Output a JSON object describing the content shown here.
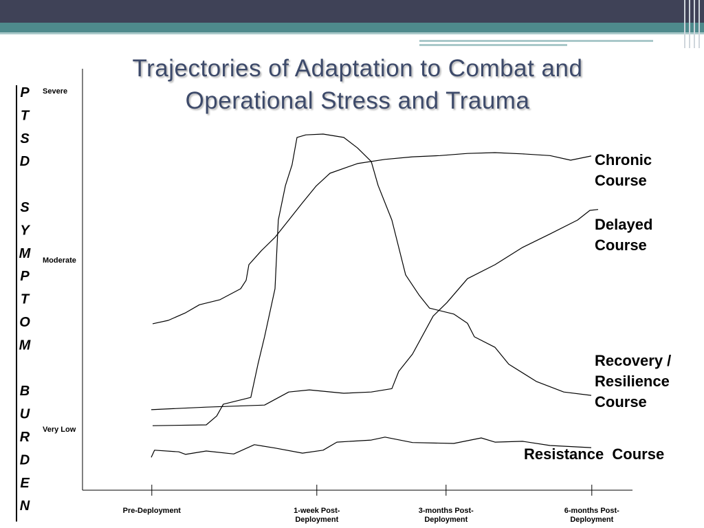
{
  "chart_data": {
    "type": "line",
    "title": "Trajectories of Adaptation to Combat and Operational Stress and Trauma",
    "y_label": "PTSD SYMPTOM BURDEN",
    "xlim": [
      0,
      100
    ],
    "ylim": [
      0,
      100
    ],
    "xticks": [
      {
        "value": 12.6,
        "label": "Pre-Deployment"
      },
      {
        "value": 42.6,
        "label": "1-week Post-Deployment"
      },
      {
        "value": 66.1,
        "label": "3-months Post-Deployment"
      },
      {
        "value": 92.6,
        "label": "6-months Post-Deployment"
      }
    ],
    "yticks": [
      {
        "value": 14.4,
        "label": "Very Low"
      },
      {
        "value": 54.5,
        "label": "Moderate"
      },
      {
        "value": 94.6,
        "label": "Severe"
      }
    ],
    "series": [
      {
        "name": "Chronic Course",
        "color": "#000000",
        "x": [
          12.75,
          15.6,
          18.75,
          21.25,
          25,
          28.75,
          29.75,
          30.25,
          32.5,
          35,
          37.5,
          40,
          42.5,
          45,
          50,
          55,
          60,
          65,
          70,
          75,
          80,
          85,
          88.75,
          92.5
        ],
        "values": [
          39.5,
          40.3,
          42.1,
          44.0,
          45.2,
          47.8,
          49.8,
          53.5,
          56.8,
          60.0,
          64.1,
          68.2,
          72.2,
          75.2,
          77.5,
          78.5,
          79.1,
          79.4,
          79.9,
          80.1,
          79.8,
          79.4,
          78.3,
          79.3
        ]
      },
      {
        "name": "Delayed Course",
        "color": "#000000",
        "x": [
          12.5,
          22.5,
          33.1,
          37.5,
          41.25,
          47.5,
          52.5,
          56.25,
          57.5,
          60,
          63.75,
          66.25,
          70,
          75,
          80,
          85,
          90,
          92.25,
          93.75
        ],
        "values": [
          19.1,
          19.7,
          20.2,
          23.3,
          23.8,
          23.0,
          23.3,
          24.1,
          28.2,
          32.3,
          41.3,
          44.5,
          50.2,
          53.5,
          57.6,
          60.8,
          64.1,
          66.4,
          66.6
        ]
      },
      {
        "name": "Recovery / Resilience Course",
        "color": "#000000",
        "x": [
          12.75,
          22.5,
          24.4,
          25.6,
          30.6,
          31.9,
          33.1,
          35,
          35.6,
          36.9,
          38.1,
          39,
          40.6,
          43.75,
          47.5,
          50,
          52.5,
          53.75,
          56.25,
          58.75,
          61.25,
          63.1,
          67.5,
          70,
          71.25,
          75,
          77.5,
          82.5,
          87.5,
          92.5
        ],
        "values": [
          15.3,
          15.5,
          17.6,
          20.4,
          22.0,
          29.9,
          36.4,
          47.8,
          64.1,
          72.3,
          77.2,
          83.7,
          84.3,
          84.5,
          83.7,
          81.2,
          78.0,
          72.3,
          64.1,
          51.1,
          46.2,
          43.2,
          41.8,
          39.6,
          36.4,
          33.9,
          29.9,
          25.8,
          23.3,
          22.5
        ]
      },
      {
        "name": "Resistance  Course",
        "color": "#000000",
        "x": [
          12.5,
          13.1,
          17.5,
          18.75,
          22.5,
          27.5,
          31.25,
          35,
          40,
          43.75,
          46.25,
          52.5,
          55,
          60,
          67.5,
          72.5,
          75,
          80,
          85,
          92.5
        ],
        "values": [
          7.8,
          9.5,
          9.1,
          8.5,
          9.3,
          8.6,
          10.8,
          10.0,
          8.8,
          9.5,
          11.4,
          11.9,
          12.6,
          11.3,
          11.1,
          12.4,
          11.4,
          11.6,
          10.6,
          10.1
        ]
      }
    ]
  }
}
